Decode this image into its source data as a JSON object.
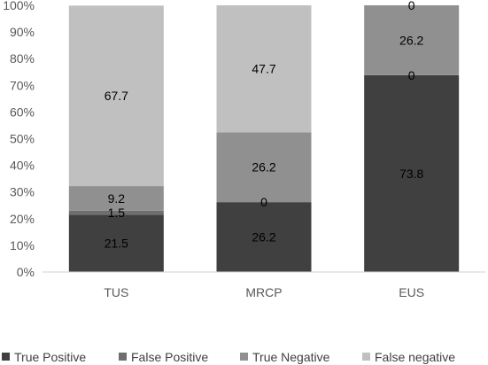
{
  "chart_data": {
    "type": "bar",
    "stacked": true,
    "categories": [
      "TUS",
      "MRCP",
      "EUS"
    ],
    "series": [
      {
        "name": "True Positive",
        "values": [
          21.5,
          26.2,
          73.8
        ],
        "color": "#404040"
      },
      {
        "name": "False Positive",
        "values": [
          1.5,
          0,
          0
        ],
        "color": "#6e6e6e"
      },
      {
        "name": "True Negative",
        "values": [
          9.2,
          26.2,
          26.2
        ],
        "color": "#909090"
      },
      {
        "name": "False negative",
        "values": [
          67.7,
          47.7,
          0
        ],
        "color": "#c0c0c0"
      }
    ],
    "data_labels": [
      [
        "21.5",
        "26.2",
        "73.8"
      ],
      [
        "1.5",
        "0",
        "0"
      ],
      [
        "9.2",
        "26.2",
        "26.2"
      ],
      [
        "67.7",
        "47.7",
        "0"
      ]
    ],
    "y_ticks": [
      "0%",
      "10%",
      "20%",
      "30%",
      "40%",
      "50%",
      "60%",
      "70%",
      "80%",
      "90%",
      "100%"
    ],
    "ylim": [
      0,
      100
    ],
    "grid": false,
    "legend_position": "bottom"
  }
}
